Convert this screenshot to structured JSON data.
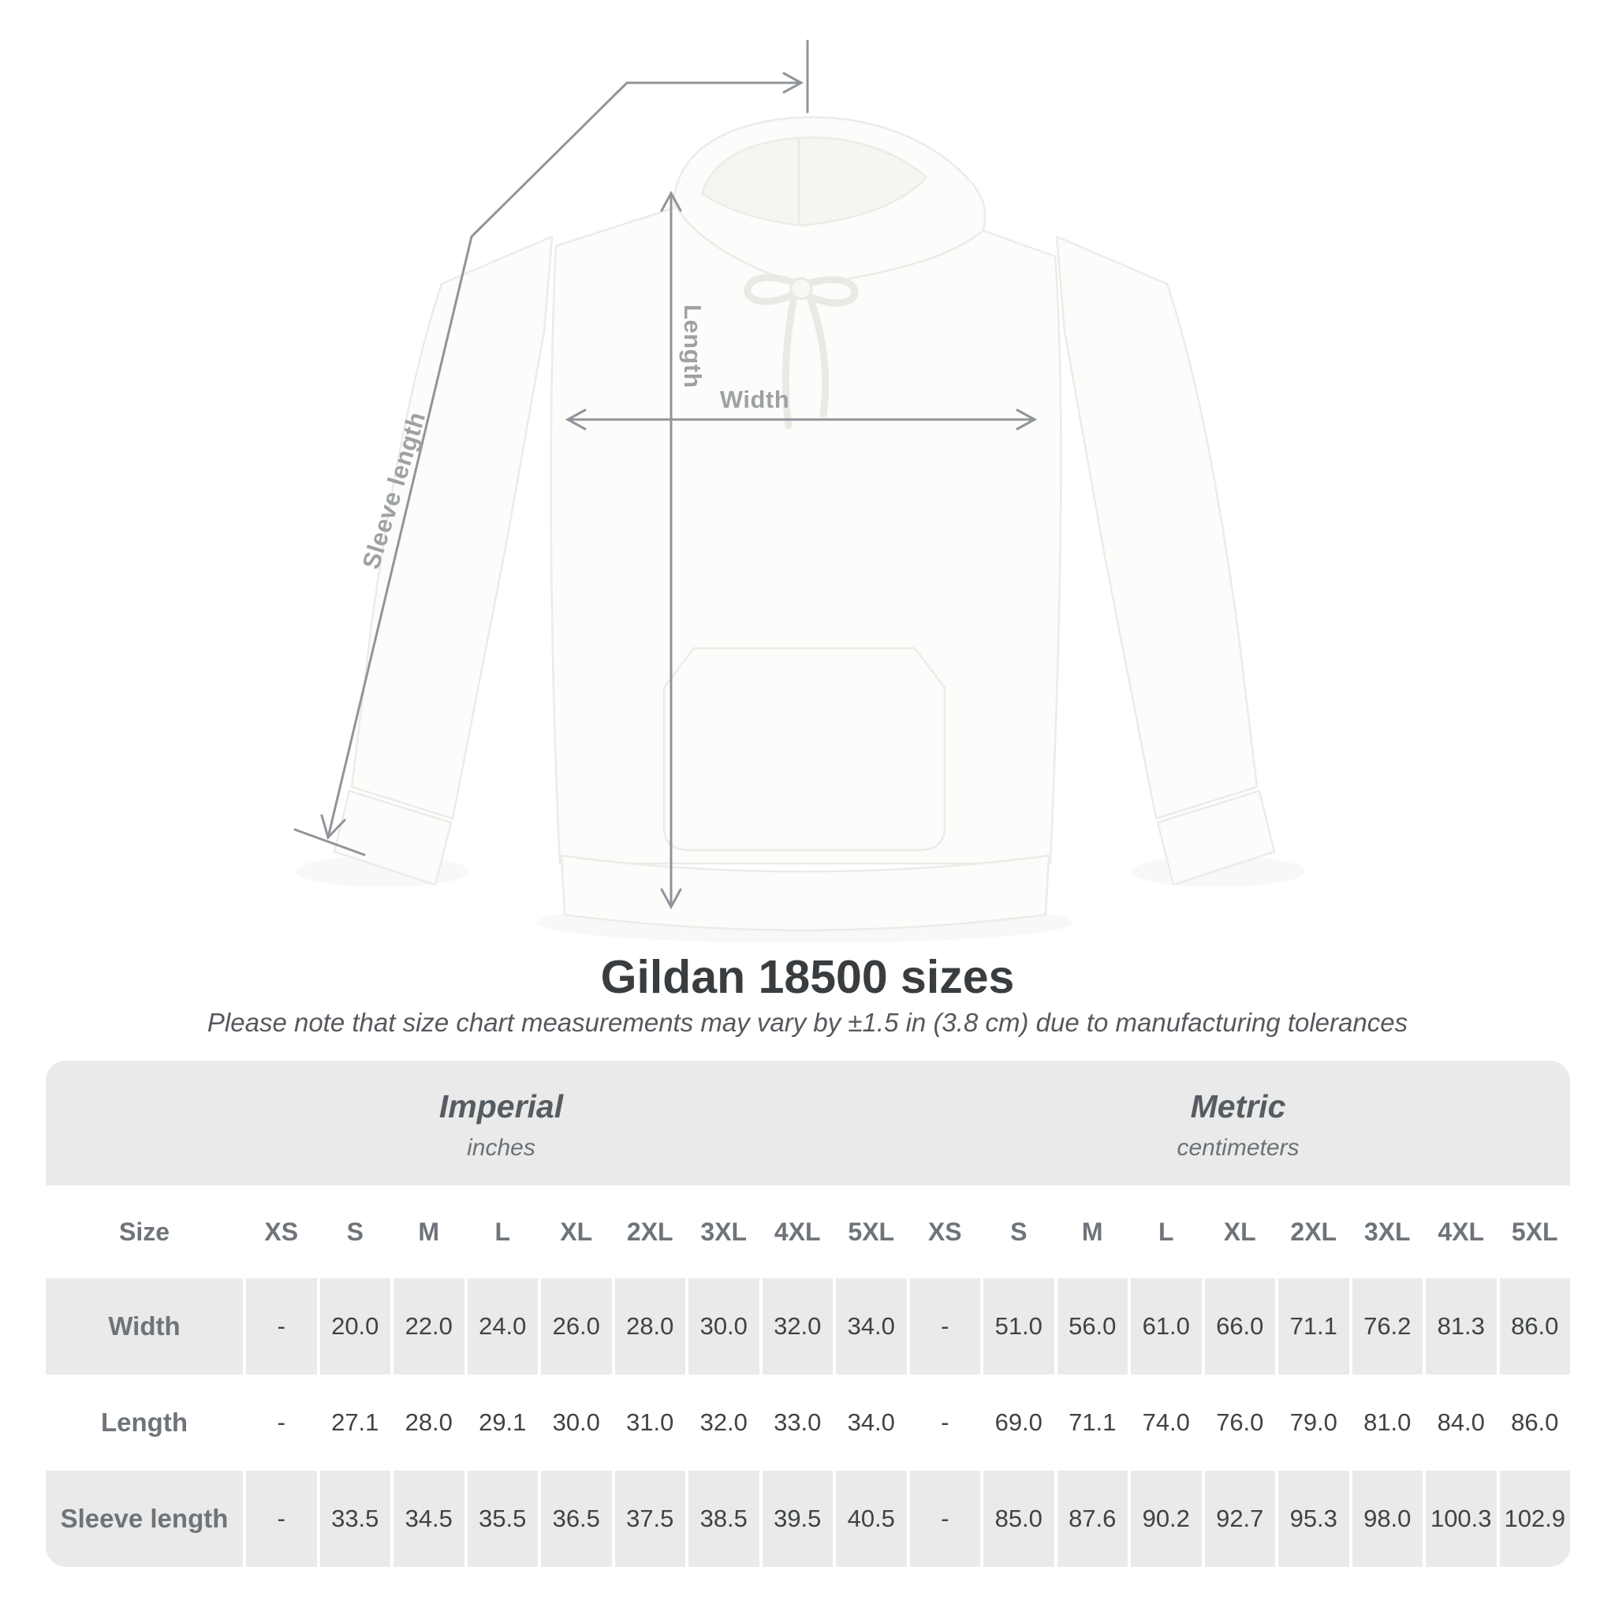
{
  "heading": {
    "title": "Gildan 18500 sizes",
    "subtitle": "Please note that size chart measurements may vary by ±1.5 in (3.8 cm) due to manufacturing tolerances"
  },
  "diagram": {
    "length_label": "Length",
    "width_label": "Width",
    "sleeve_label": "Sleeve length",
    "line_color": "#90959a",
    "label_color": "#9da1a4"
  },
  "table_colors": {
    "band_background": "#e9eae9",
    "stripe_background": "#e9eae9",
    "plain_background": "#ffffff",
    "label_text": "#6e7479",
    "value_text": "#3f4346"
  },
  "chart_data": {
    "type": "table",
    "title": "Gildan 18500 sizes",
    "size_label": "Size",
    "groups": [
      {
        "name": "Imperial",
        "unit": "inches"
      },
      {
        "name": "Metric",
        "unit": "centimeters"
      }
    ],
    "sizes": [
      "XS",
      "S",
      "M",
      "L",
      "XL",
      "2XL",
      "3XL",
      "4XL",
      "5XL"
    ],
    "rows": [
      {
        "label": "Width",
        "imperial_in": [
          "-",
          "20.0",
          "22.0",
          "24.0",
          "26.0",
          "28.0",
          "30.0",
          "32.0",
          "34.0"
        ],
        "metric_cm": [
          "-",
          "51.0",
          "56.0",
          "61.0",
          "66.0",
          "71.1",
          "76.2",
          "81.3",
          "86.0"
        ]
      },
      {
        "label": "Length",
        "imperial_in": [
          "-",
          "27.1",
          "28.0",
          "29.1",
          "30.0",
          "31.0",
          "32.0",
          "33.0",
          "34.0"
        ],
        "metric_cm": [
          "-",
          "69.0",
          "71.1",
          "74.0",
          "76.0",
          "79.0",
          "81.0",
          "84.0",
          "86.0"
        ]
      },
      {
        "label": "Sleeve length",
        "imperial_in": [
          "-",
          "33.5",
          "34.5",
          "35.5",
          "36.5",
          "37.5",
          "38.5",
          "39.5",
          "40.5"
        ],
        "metric_cm": [
          "-",
          "85.0",
          "87.6",
          "90.2",
          "92.7",
          "95.3",
          "98.0",
          "100.3",
          "102.9"
        ]
      }
    ]
  }
}
